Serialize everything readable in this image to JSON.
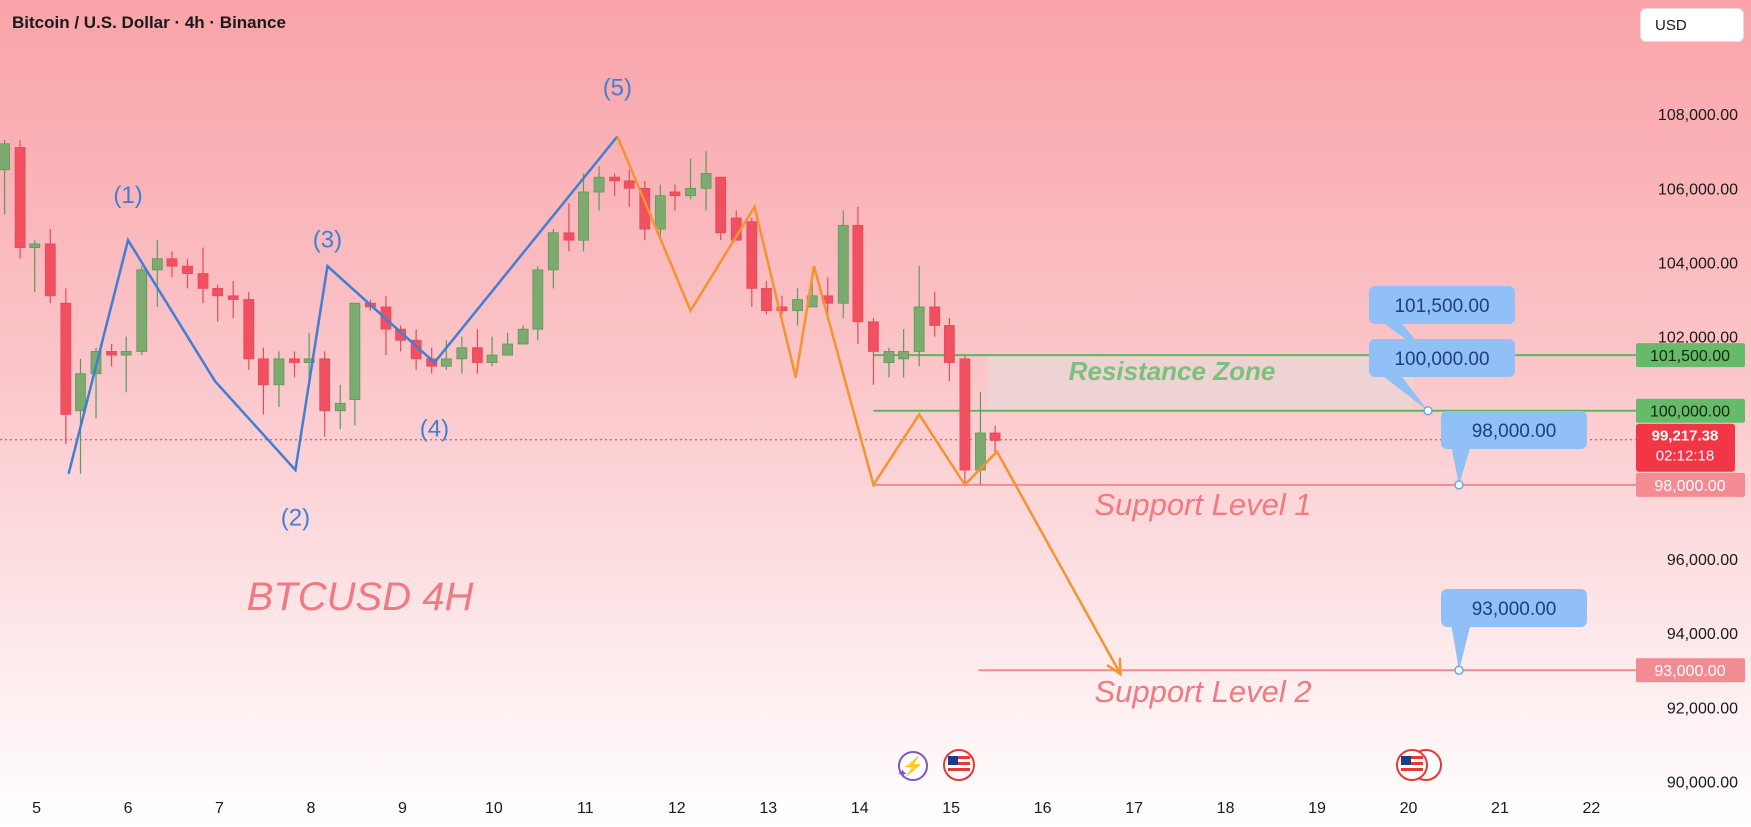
{
  "header": {
    "title": "Bitcoin / U.S. Dollar · 4h · Binance",
    "currency": "USD"
  },
  "chart_data": {
    "type": "candlestick",
    "x_ticks": [
      "5",
      "6",
      "7",
      "8",
      "9",
      "10",
      "11",
      "12",
      "13",
      "14",
      "15",
      "16",
      "17",
      "18",
      "19",
      "20",
      "21",
      "22"
    ],
    "y_ticks": [
      "108,000.00",
      "106,000.00",
      "104,000.00",
      "102,000.00",
      "96,000.00",
      "94,000.00",
      "92,000.00",
      "90,000.00"
    ],
    "ylim": [
      89500,
      110000
    ],
    "xlim": [
      4.6,
      22.4
    ],
    "current_price": {
      "label": "99,217.38",
      "countdown": "02:12:18",
      "value": 99217.38,
      "color": "#f23645"
    },
    "levels": [
      {
        "value": 101500,
        "label": "101,500.00",
        "callout": "101,500.00",
        "color": "#5cb85c"
      },
      {
        "value": 100000,
        "label": "100,000.00",
        "callout": "100,000.00",
        "color": "#5cb85c"
      },
      {
        "value": 98000,
        "label": "98,000.00",
        "callout": "98,000.00",
        "color": "#f08a8e"
      },
      {
        "value": 93000,
        "label": "93,000.00",
        "callout": "93,000.00",
        "color": "#f08a8e"
      }
    ],
    "annotations": {
      "zone_label": "Resistance Zone",
      "support1": "Support Level 1",
      "support2": "Support Level 2",
      "symbol_label": "BTCUSD 4H"
    },
    "wave_labels": [
      {
        "text": "(1)",
        "x": 6.0,
        "y": 105600
      },
      {
        "text": "(2)",
        "x": 7.83,
        "y": 96900
      },
      {
        "text": "(3)",
        "x": 8.18,
        "y": 104400
      },
      {
        "text": "(4)",
        "x": 9.35,
        "y": 99300
      },
      {
        "text": "(5)",
        "x": 11.35,
        "y": 108500
      }
    ],
    "wave_path": [
      [
        5.35,
        98300
      ],
      [
        6.0,
        104600
      ],
      [
        6.95,
        100800
      ],
      [
        7.83,
        98400
      ],
      [
        8.18,
        103900
      ],
      [
        9.35,
        101300
      ],
      [
        11.35,
        107400
      ]
    ],
    "projection_path": [
      [
        11.35,
        107400
      ],
      [
        12.15,
        102700
      ],
      [
        12.85,
        105500
      ],
      [
        13.3,
        100900
      ],
      [
        13.5,
        103900
      ],
      [
        14.15,
        98000
      ],
      [
        14.65,
        99900
      ],
      [
        15.15,
        98000
      ],
      [
        15.5,
        98900
      ],
      [
        16.85,
        92900
      ]
    ],
    "candles": [
      [
        4.65,
        106500,
        107200,
        107300,
        105300
      ],
      [
        4.82,
        107100,
        104400,
        107300,
        104100
      ],
      [
        4.98,
        104400,
        104500,
        104600,
        103200
      ],
      [
        5.15,
        104500,
        103100,
        104900,
        102900
      ],
      [
        5.32,
        102900,
        99900,
        103300,
        99100
      ],
      [
        5.48,
        100000,
        101000,
        101400,
        98300
      ],
      [
        5.65,
        101000,
        101600,
        101700,
        99800
      ],
      [
        5.82,
        101600,
        101500,
        101800,
        101200
      ],
      [
        5.98,
        101500,
        101600,
        102000,
        100500
      ],
      [
        6.15,
        101600,
        103800,
        103900,
        101500
      ],
      [
        6.32,
        103800,
        104100,
        104600,
        102800
      ],
      [
        6.48,
        104100,
        103900,
        104300,
        103600
      ],
      [
        6.65,
        103900,
        103700,
        104100,
        103300
      ],
      [
        6.82,
        103700,
        103300,
        104400,
        102900
      ],
      [
        6.98,
        103300,
        103100,
        103400,
        102400
      ],
      [
        7.15,
        103100,
        103000,
        103500,
        102500
      ],
      [
        7.32,
        103000,
        101400,
        103200,
        101100
      ],
      [
        7.48,
        101400,
        100700,
        101700,
        99900
      ],
      [
        7.65,
        100700,
        101400,
        101600,
        100100
      ],
      [
        7.82,
        101400,
        101300,
        101600,
        100900
      ],
      [
        7.98,
        101300,
        101400,
        102100,
        100800
      ],
      [
        8.15,
        101400,
        100000,
        101600,
        99300
      ],
      [
        8.32,
        100000,
        100200,
        100700,
        99500
      ],
      [
        8.48,
        100300,
        102900,
        102900,
        99600
      ],
      [
        8.65,
        102900,
        102800,
        103000,
        102700
      ],
      [
        8.82,
        102800,
        102200,
        103100,
        101500
      ],
      [
        8.98,
        102200,
        101900,
        102300,
        101600
      ],
      [
        9.15,
        101900,
        101400,
        102200,
        101100
      ],
      [
        9.32,
        101400,
        101200,
        101700,
        101000
      ],
      [
        9.48,
        101200,
        101400,
        101900,
        101100
      ],
      [
        9.65,
        101400,
        101700,
        102000,
        101000
      ],
      [
        9.82,
        101700,
        101300,
        102200,
        101000
      ],
      [
        9.98,
        101300,
        101500,
        102000,
        101200
      ],
      [
        10.15,
        101500,
        101800,
        102100,
        101600
      ],
      [
        10.32,
        101800,
        102200,
        102300,
        101800
      ],
      [
        10.48,
        102200,
        103800,
        103900,
        101900
      ],
      [
        10.65,
        103800,
        104800,
        104900,
        103300
      ],
      [
        10.82,
        104800,
        104600,
        105600,
        104300
      ],
      [
        10.98,
        104600,
        105900,
        106400,
        104300
      ],
      [
        11.15,
        105900,
        106300,
        106600,
        105400
      ],
      [
        11.32,
        106300,
        106200,
        106400,
        105800
      ],
      [
        11.48,
        106200,
        106000,
        106500,
        105500
      ],
      [
        11.65,
        106000,
        104900,
        106200,
        104600
      ],
      [
        11.82,
        104900,
        105800,
        106100,
        104700
      ],
      [
        11.98,
        105900,
        105800,
        106100,
        105400
      ],
      [
        12.15,
        105800,
        106000,
        106800,
        105700
      ],
      [
        12.32,
        106000,
        106400,
        107000,
        105400
      ],
      [
        12.48,
        106300,
        104800,
        106300,
        104600
      ],
      [
        12.65,
        105200,
        104600,
        105400,
        104600
      ],
      [
        12.82,
        105100,
        103300,
        105200,
        102800
      ],
      [
        12.98,
        103300,
        102700,
        103500,
        102600
      ],
      [
        13.15,
        102800,
        102700,
        103100,
        102600
      ],
      [
        13.32,
        102700,
        103000,
        103300,
        102300
      ],
      [
        13.48,
        102800,
        103100,
        103600,
        102900
      ],
      [
        13.65,
        103100,
        102900,
        103600,
        102600
      ],
      [
        13.82,
        102900,
        105000,
        105400,
        102500
      ],
      [
        13.98,
        105000,
        102400,
        105500,
        101800
      ],
      [
        14.15,
        102400,
        101600,
        102500,
        100700
      ],
      [
        14.32,
        101300,
        101600,
        101700,
        100900
      ],
      [
        14.48,
        101400,
        101600,
        102200,
        100900
      ],
      [
        14.65,
        101600,
        102800,
        103900,
        101200
      ],
      [
        14.82,
        102800,
        102300,
        103200,
        102000
      ],
      [
        14.98,
        102300,
        101300,
        102500,
        100800
      ],
      [
        15.15,
        101400,
        98400,
        101500,
        98000
      ],
      [
        15.32,
        98400,
        99400,
        100500,
        98000
      ],
      [
        15.48,
        99400,
        99200,
        99600,
        98800
      ]
    ]
  }
}
